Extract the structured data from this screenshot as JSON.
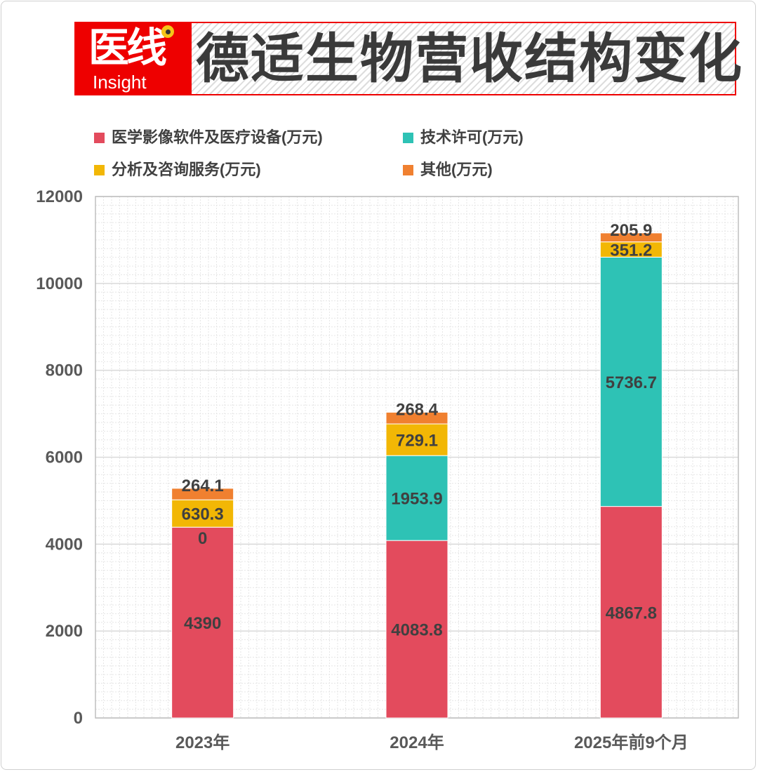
{
  "header": {
    "logo_cn": "医线",
    "logo_en": "Insight",
    "title": "德适生物营收结构变化"
  },
  "chart_data": {
    "type": "bar",
    "stacked": true,
    "title": "德适生物营收结构变化",
    "categories": [
      "2023年",
      "2024年",
      "2025年前9个月"
    ],
    "series": [
      {
        "name": "医学影像软件及医疗设备(万元)",
        "color": "#e34b5d",
        "values": [
          4390,
          4083.8,
          4867.8
        ],
        "labels": [
          "4390",
          "4083.8",
          "4867.8"
        ]
      },
      {
        "name": "技术许可(万元)",
        "color": "#2ec2b5",
        "values": [
          0,
          1953.9,
          5736.7
        ],
        "labels": [
          "0",
          "1953.9",
          "5736.7"
        ]
      },
      {
        "name": "分析及咨询服务(万元)",
        "color": "#f2b705",
        "values": [
          630.3,
          729.1,
          351.2
        ],
        "labels": [
          "630.3",
          "729.1",
          "351.2"
        ]
      },
      {
        "name": "其他(万元)",
        "color": "#f08030",
        "values": [
          264.1,
          268.4,
          205.9
        ],
        "labels": [
          "264.1",
          "268.4",
          "205.9"
        ]
      }
    ],
    "ylim": [
      0,
      12000
    ],
    "yticks": [
      "0",
      "2000",
      "4000",
      "6000",
      "8000",
      "10000",
      "12000"
    ],
    "xlabel": "",
    "ylabel": "",
    "grid": true,
    "legend_position": "top"
  }
}
